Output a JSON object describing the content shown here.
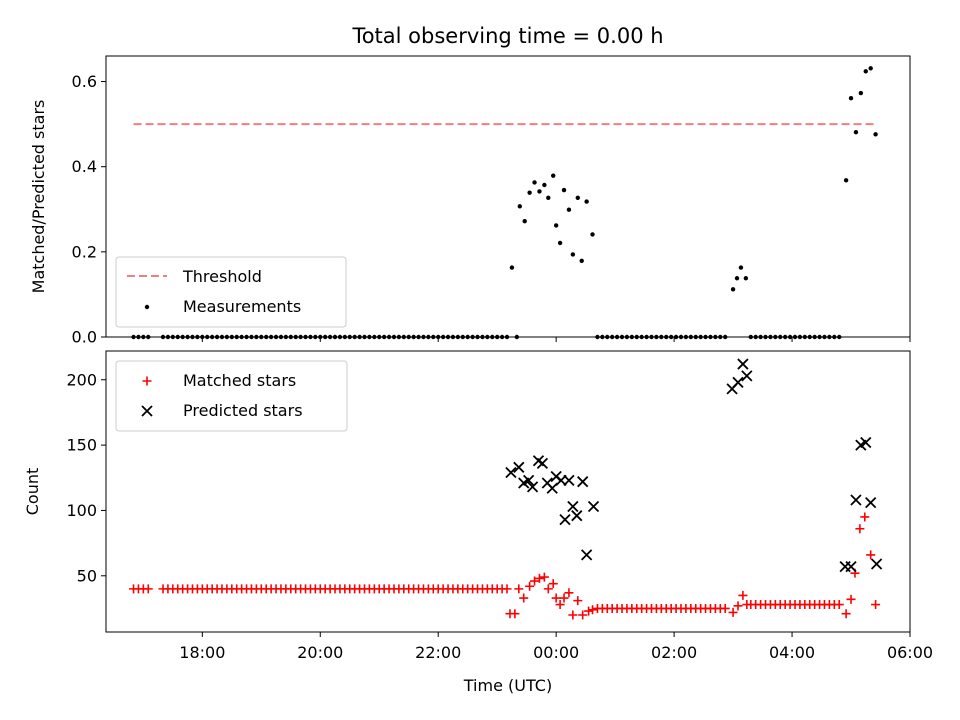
{
  "figure": {
    "title": "Total observing time = 0.00 h"
  },
  "chart_data": [
    {
      "type": "scatter",
      "panel": "top",
      "title": "Total observing time = 0.00 h",
      "xlabel": "",
      "ylabel": "Matched/Predicted stars",
      "xlim": [
        "2000-01-01T16:22",
        "2000-01-02T06:00"
      ],
      "ylim": [
        0,
        0.66
      ],
      "yticks": [
        0.0,
        0.2,
        0.4,
        0.6
      ],
      "ytick_labels": [
        "0.0",
        "0.2",
        "0.4",
        "0.6"
      ],
      "xticks": [
        "2000-01-01T18:00",
        "2000-01-01T20:00",
        "2000-01-01T22:00",
        "2000-01-02T00:00",
        "2000-01-02T02:00",
        "2000-01-02T04:00",
        "2000-01-02T06:00"
      ],
      "grid": false,
      "legend": {
        "position": "lower-left",
        "entries": [
          "Threshold",
          "Measurements"
        ]
      },
      "threshold": {
        "name": "Threshold",
        "value": 0.5,
        "x_start": "2000-01-01T16:50",
        "x_end": "2000-01-02T05:25",
        "color": "#f08080",
        "style": "dashed"
      },
      "series": [
        {
          "name": "Measurements",
          "marker": "dot",
          "color": "#000000",
          "points": [
            [
              "2000-01-01T23:15",
              0.163
            ],
            [
              "2000-01-01T23:23",
              0.307
            ],
            [
              "2000-01-01T23:28",
              0.272
            ],
            [
              "2000-01-01T23:33",
              0.339
            ],
            [
              "2000-01-01T23:38",
              0.363
            ],
            [
              "2000-01-01T23:43",
              0.342
            ],
            [
              "2000-01-01T23:48",
              0.357
            ],
            [
              "2000-01-01T23:52",
              0.327
            ],
            [
              "2000-01-01T23:57",
              0.379
            ],
            [
              "2000-01-02T00:00",
              0.262
            ],
            [
              "2000-01-02T00:04",
              0.221
            ],
            [
              "2000-01-02T00:08",
              0.345
            ],
            [
              "2000-01-02T00:13",
              0.299
            ],
            [
              "2000-01-02T00:17",
              0.194
            ],
            [
              "2000-01-02T00:22",
              0.327
            ],
            [
              "2000-01-02T00:26",
              0.179
            ],
            [
              "2000-01-02T00:31",
              0.318
            ],
            [
              "2000-01-02T00:37",
              0.241
            ],
            [
              "2000-01-02T03:00",
              0.112
            ],
            [
              "2000-01-02T03:04",
              0.138
            ],
            [
              "2000-01-02T03:08",
              0.163
            ],
            [
              "2000-01-02T03:13",
              0.138
            ],
            [
              "2000-01-02T04:55",
              0.368
            ],
            [
              "2000-01-02T05:00",
              0.561
            ],
            [
              "2000-01-02T05:05",
              0.481
            ],
            [
              "2000-01-02T05:10",
              0.573
            ],
            [
              "2000-01-02T05:15",
              0.624
            ],
            [
              "2000-01-02T05:20",
              0.631
            ],
            [
              "2000-01-02T05:25",
              0.476
            ]
          ],
          "zero_runs": [
            {
              "from": "2000-01-01T16:50",
              "to": "2000-01-01T23:10",
              "value": 0.0
            },
            {
              "from": "2000-01-02T00:42",
              "to": "2000-01-02T02:55",
              "value": 0.0
            },
            {
              "from": "2000-01-02T03:18",
              "to": "2000-01-02T04:50",
              "value": 0.0
            }
          ],
          "zero_gaps": [
            {
              "from": "2000-01-01T17:05",
              "to": "2000-01-01T17:20"
            },
            {
              "from": "2000-01-01T23:12",
              "to": "2000-01-01T23:20"
            }
          ],
          "zero_extra": [
            "2000-01-01T23:20"
          ]
        }
      ]
    },
    {
      "type": "scatter",
      "panel": "bottom",
      "xlabel": "Time (UTC)",
      "ylabel": "Count",
      "xlim": [
        "2000-01-01T16:22",
        "2000-01-02T06:00"
      ],
      "ylim": [
        7,
        222
      ],
      "yticks": [
        50,
        100,
        150,
        200
      ],
      "ytick_labels": [
        "50",
        "100",
        "150",
        "200"
      ],
      "xticks": [
        "2000-01-01T18:00",
        "2000-01-01T20:00",
        "2000-01-01T22:00",
        "2000-01-02T00:00",
        "2000-01-02T02:00",
        "2000-01-02T04:00",
        "2000-01-02T06:00"
      ],
      "xtick_labels": [
        "18:00",
        "20:00",
        "22:00",
        "00:00",
        "02:00",
        "04:00",
        "06:00"
      ],
      "grid": false,
      "legend": {
        "position": "top-left",
        "entries": [
          "Matched stars",
          "Predicted stars"
        ]
      },
      "series": [
        {
          "name": "Matched stars",
          "marker": "plus",
          "color": "#ff0000",
          "runs": [
            {
              "from": "2000-01-01T16:50",
              "to": "2000-01-01T23:10",
              "value": 40,
              "gaps": [
                [
                  "2000-01-01T17:05",
                  "2000-01-01T17:20"
                ]
              ]
            },
            {
              "from": "2000-01-02T00:42",
              "to": "2000-01-02T02:55",
              "value": 25
            },
            {
              "from": "2000-01-02T03:18",
              "to": "2000-01-02T04:50",
              "value": 28
            }
          ],
          "points": [
            [
              "2000-01-01T23:13",
              21
            ],
            [
              "2000-01-01T23:18",
              21
            ],
            [
              "2000-01-01T23:22",
              40
            ],
            [
              "2000-01-01T23:27",
              33
            ],
            [
              "2000-01-01T23:33",
              42
            ],
            [
              "2000-01-01T23:38",
              46
            ],
            [
              "2000-01-01T23:43",
              48
            ],
            [
              "2000-01-01T23:48",
              49
            ],
            [
              "2000-01-01T23:52",
              40
            ],
            [
              "2000-01-01T23:57",
              44
            ],
            [
              "2000-01-02T00:00",
              33
            ],
            [
              "2000-01-02T00:04",
              28
            ],
            [
              "2000-01-02T00:08",
              33
            ],
            [
              "2000-01-02T00:13",
              37
            ],
            [
              "2000-01-02T00:17",
              20
            ],
            [
              "2000-01-02T00:22",
              31
            ],
            [
              "2000-01-02T00:27",
              20
            ],
            [
              "2000-01-02T00:33",
              23
            ],
            [
              "2000-01-02T00:37",
              24
            ],
            [
              "2000-01-02T03:00",
              22
            ],
            [
              "2000-01-02T03:05",
              27
            ],
            [
              "2000-01-02T03:10",
              35
            ],
            [
              "2000-01-02T03:14",
              28
            ],
            [
              "2000-01-02T04:55",
              21
            ],
            [
              "2000-01-02T05:00",
              32
            ],
            [
              "2000-01-02T05:04",
              52
            ],
            [
              "2000-01-02T05:09",
              86
            ],
            [
              "2000-01-02T05:14",
              95
            ],
            [
              "2000-01-02T05:20",
              66
            ],
            [
              "2000-01-02T05:25",
              28
            ]
          ]
        },
        {
          "name": "Predicted stars",
          "marker": "x",
          "color": "#000000",
          "points": [
            [
              "2000-01-01T23:14",
              129
            ],
            [
              "2000-01-01T23:22",
              133
            ],
            [
              "2000-01-01T23:27",
              121
            ],
            [
              "2000-01-01T23:32",
              123
            ],
            [
              "2000-01-01T23:36",
              118
            ],
            [
              "2000-01-01T23:42",
              138
            ],
            [
              "2000-01-01T23:46",
              136
            ],
            [
              "2000-01-01T23:51",
              121
            ],
            [
              "2000-01-01T23:56",
              117
            ],
            [
              "2000-01-02T00:00",
              126
            ],
            [
              "2000-01-02T00:05",
              123
            ],
            [
              "2000-01-02T00:09",
              93
            ],
            [
              "2000-01-02T00:13",
              123
            ],
            [
              "2000-01-02T00:17",
              103
            ],
            [
              "2000-01-02T00:21",
              96
            ],
            [
              "2000-01-02T00:27",
              122
            ],
            [
              "2000-01-02T00:31",
              66
            ],
            [
              "2000-01-02T00:38",
              103
            ],
            [
              "2000-01-02T02:59",
              193
            ],
            [
              "2000-01-02T03:05",
              198
            ],
            [
              "2000-01-02T03:10",
              212
            ],
            [
              "2000-01-02T03:14",
              203
            ],
            [
              "2000-01-02T04:54",
              57
            ],
            [
              "2000-01-02T05:00",
              57
            ],
            [
              "2000-01-02T05:05",
              108
            ],
            [
              "2000-01-02T05:10",
              150
            ],
            [
              "2000-01-02T05:15",
              152
            ],
            [
              "2000-01-02T05:20",
              106
            ],
            [
              "2000-01-02T05:26",
              59
            ]
          ]
        }
      ]
    }
  ]
}
